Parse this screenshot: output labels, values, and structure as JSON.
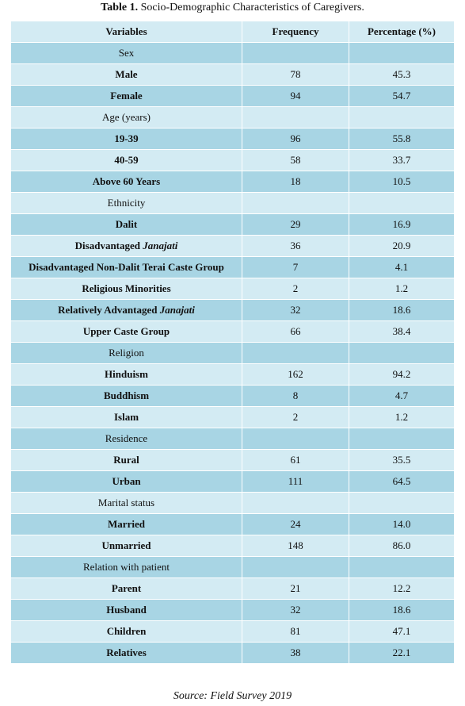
{
  "title": {
    "label": "Table 1.",
    "text": "Socio-Demographic Characteristics of Caregivers."
  },
  "table": {
    "columns": [
      "Variables",
      "Frequency",
      "Percentage (%)"
    ],
    "rows": [
      {
        "variable": "Sex",
        "heading": true
      },
      {
        "variable": "Male",
        "frequency": "78",
        "percentage": "45.3"
      },
      {
        "variable": "Female",
        "frequency": "94",
        "percentage": "54.7"
      },
      {
        "variable": "Age (years)",
        "heading": true
      },
      {
        "variable": "19-39",
        "frequency": "96",
        "percentage": "55.8"
      },
      {
        "variable": "40-59",
        "frequency": "58",
        "percentage": "33.7"
      },
      {
        "variable": "Above 60 Years",
        "frequency": "18",
        "percentage": "10.5"
      },
      {
        "variable": "Ethnicity",
        "heading": true
      },
      {
        "variable": "Dalit",
        "frequency": "29",
        "percentage": "16.9"
      },
      {
        "variable": [
          {
            "text": "Disadvantaged "
          },
          {
            "text": "Janajati",
            "italic": true
          }
        ],
        "frequency": "36",
        "percentage": "20.9"
      },
      {
        "variable": "Disadvantaged Non-Dalit Terai Caste Group",
        "frequency": "7",
        "percentage": "4.1"
      },
      {
        "variable": "Religious Minorities",
        "frequency": "2",
        "percentage": "1.2"
      },
      {
        "variable": [
          {
            "text": "Relatively Advantaged "
          },
          {
            "text": "Janajati",
            "italic": true
          }
        ],
        "frequency": "32",
        "percentage": "18.6"
      },
      {
        "variable": "Upper Caste Group",
        "frequency": "66",
        "percentage": "38.4"
      },
      {
        "variable": "Religion",
        "heading": true
      },
      {
        "variable": "Hinduism",
        "frequency": "162",
        "percentage": "94.2"
      },
      {
        "variable": "Buddhism",
        "frequency": "8",
        "percentage": "4.7"
      },
      {
        "variable": "Islam",
        "frequency": "2",
        "percentage": "1.2"
      },
      {
        "variable": "Residence",
        "heading": true
      },
      {
        "variable": "Rural",
        "frequency": "61",
        "percentage": "35.5"
      },
      {
        "variable": "Urban",
        "frequency": "111",
        "percentage": "64.5"
      },
      {
        "variable": "Marital status",
        "heading": true
      },
      {
        "variable": "Married",
        "frequency": "24",
        "percentage": "14.0"
      },
      {
        "variable": "Unmarried",
        "frequency": "148",
        "percentage": "86.0"
      },
      {
        "variable": "Relation with patient",
        "heading": true
      },
      {
        "variable": "Parent",
        "frequency": "21",
        "percentage": "12.2"
      },
      {
        "variable": "Husband",
        "frequency": "32",
        "percentage": "18.6"
      },
      {
        "variable": "Children",
        "frequency": "81",
        "percentage": "47.1"
      },
      {
        "variable": "Relatives",
        "frequency": "38",
        "percentage": "22.1"
      }
    ]
  },
  "source": "Source: Field Survey 2019"
}
